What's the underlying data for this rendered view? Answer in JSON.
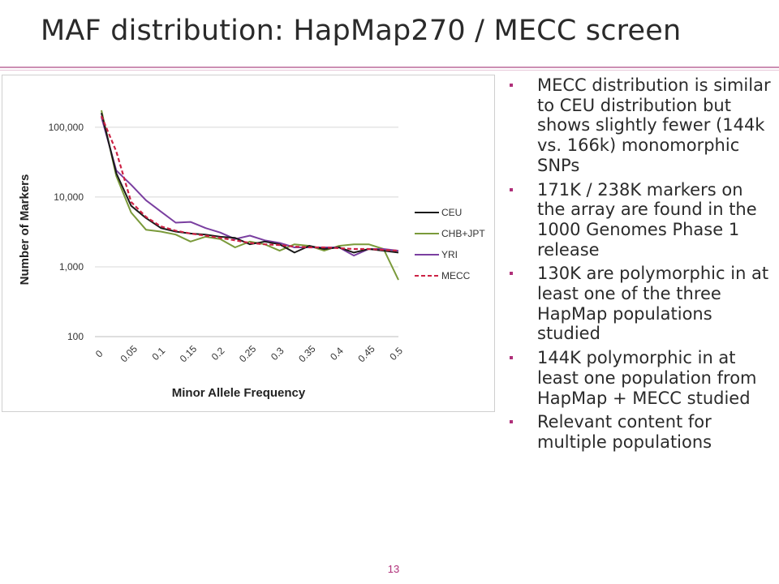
{
  "slide": {
    "title": "MAF distribution: HapMap270 / MECC screen",
    "page_number": "13"
  },
  "bullets": [
    "MECC distribution is similar to CEU distribution but shows slightly fewer (144k vs. 166k) monomorphic SNPs",
    "171K / 238K markers on the array are found in the 1000 Genomes Phase 1 release",
    "130K are polymorphic in at least one of the three HapMap populations studied",
    "144K polymorphic in at least one population from HapMap + MECC studied",
    "Relevant content for multiple populations"
  ],
  "colors": {
    "accent": "#b0307a",
    "CEU": "#1a1a1a",
    "CHB+JPT": "#7a9a3a",
    "YRI": "#7a3fa0",
    "MECC": "#cc2244"
  },
  "chart_data": {
    "type": "line",
    "title": "",
    "xlabel": "Minor Allele Frequency",
    "ylabel": "Number of Markers",
    "y_scale": "log",
    "ylim": [
      100,
      200000
    ],
    "y_ticks": [
      100,
      1000,
      10000,
      100000
    ],
    "y_tick_labels": [
      "100",
      "1,000",
      "10,000",
      "100,000"
    ],
    "x_tick_labels": [
      "0",
      "0.05",
      "0.1",
      "0.15",
      "0.2",
      "0.25",
      "0.3",
      "0.35",
      "0.4",
      "0.45",
      "0.5"
    ],
    "x": [
      0,
      0.025,
      0.05,
      0.075,
      0.1,
      0.125,
      0.15,
      0.175,
      0.2,
      0.225,
      0.25,
      0.275,
      0.3,
      0.325,
      0.35,
      0.375,
      0.4,
      0.425,
      0.45,
      0.475,
      0.5
    ],
    "grid": "horizontal",
    "legend_position": "right",
    "series": [
      {
        "name": "CEU",
        "style": "solid",
        "values": [
          160000,
          22000,
          7500,
          5000,
          3600,
          3200,
          3000,
          2900,
          2700,
          2600,
          2100,
          2300,
          2100,
          1600,
          2000,
          1800,
          1900,
          1600,
          1800,
          1700,
          1600
        ]
      },
      {
        "name": "CHB+JPT",
        "style": "solid",
        "values": [
          175000,
          20000,
          6000,
          3400,
          3200,
          2900,
          2300,
          2700,
          2500,
          1900,
          2300,
          2100,
          1700,
          2100,
          2000,
          1700,
          2000,
          2100,
          2100,
          1800,
          650
        ]
      },
      {
        "name": "YRI",
        "style": "solid",
        "values": [
          140000,
          24000,
          15000,
          9000,
          6200,
          4300,
          4400,
          3600,
          3100,
          2500,
          2800,
          2400,
          2200,
          1900,
          1900,
          1900,
          1900,
          1450,
          1800,
          1800,
          1700
        ]
      },
      {
        "name": "MECC",
        "style": "dashed",
        "values": [
          145000,
          45000,
          8500,
          5200,
          3800,
          3300,
          3000,
          2800,
          2600,
          2400,
          2200,
          2100,
          2050,
          1950,
          1900,
          1900,
          1850,
          1800,
          1800,
          1750,
          1700
        ]
      }
    ]
  }
}
